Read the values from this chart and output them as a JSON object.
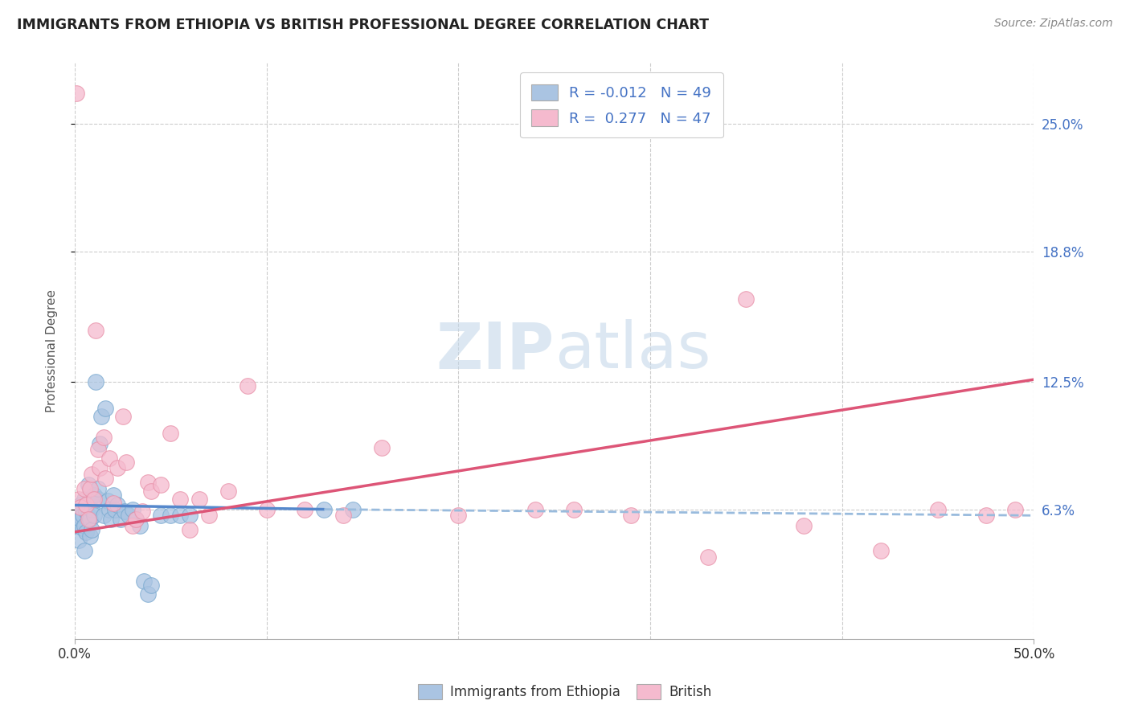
{
  "title": "IMMIGRANTS FROM ETHIOPIA VS BRITISH PROFESSIONAL DEGREE CORRELATION CHART",
  "source": "Source: ZipAtlas.com",
  "ylabel": "Professional Degree",
  "ylabel_right_labels": [
    "25.0%",
    "18.8%",
    "12.5%",
    "6.3%"
  ],
  "ylabel_right_values": [
    0.25,
    0.188,
    0.125,
    0.063
  ],
  "xlim": [
    0.0,
    0.5
  ],
  "ylim": [
    0.0,
    0.28
  ],
  "ethiopia_color": "#aac4e2",
  "british_color": "#f5bace",
  "ethiopia_edge": "#7aaad0",
  "british_edge": "#e890a8",
  "trendline_ethiopia_color": "#5588cc",
  "trendline_british_color": "#dd5577",
  "trendline_ethiopia_dashed_color": "#99bbdd",
  "grid_color": "#cccccc",
  "watermark_color": "#c5d8ea",
  "ethiopia_trendline_x": [
    0.0,
    0.13,
    0.5
  ],
  "ethiopia_trendline_y": [
    0.063,
    0.063,
    0.063
  ],
  "british_trendline_x": [
    0.0,
    0.5
  ],
  "british_trendline_y": [
    0.055,
    0.125
  ],
  "ethiopia_x": [
    0.001,
    0.002,
    0.002,
    0.003,
    0.003,
    0.004,
    0.004,
    0.005,
    0.005,
    0.005,
    0.006,
    0.006,
    0.007,
    0.007,
    0.008,
    0.008,
    0.008,
    0.009,
    0.009,
    0.01,
    0.01,
    0.011,
    0.012,
    0.012,
    0.013,
    0.014,
    0.015,
    0.016,
    0.017,
    0.018,
    0.019,
    0.02,
    0.021,
    0.022,
    0.024,
    0.026,
    0.028,
    0.03,
    0.032,
    0.034,
    0.036,
    0.038,
    0.04,
    0.045,
    0.05,
    0.055,
    0.06,
    0.13,
    0.145
  ],
  "ethiopia_y": [
    0.055,
    0.06,
    0.048,
    0.058,
    0.065,
    0.06,
    0.054,
    0.068,
    0.055,
    0.043,
    0.062,
    0.052,
    0.075,
    0.06,
    0.068,
    0.058,
    0.05,
    0.063,
    0.053,
    0.06,
    0.07,
    0.125,
    0.068,
    0.073,
    0.095,
    0.108,
    0.06,
    0.112,
    0.067,
    0.063,
    0.058,
    0.07,
    0.063,
    0.065,
    0.058,
    0.062,
    0.06,
    0.063,
    0.058,
    0.055,
    0.028,
    0.022,
    0.026,
    0.06,
    0.06,
    0.06,
    0.06,
    0.063,
    0.063
  ],
  "british_x": [
    0.001,
    0.002,
    0.003,
    0.005,
    0.006,
    0.007,
    0.008,
    0.009,
    0.01,
    0.011,
    0.012,
    0.013,
    0.015,
    0.016,
    0.018,
    0.02,
    0.022,
    0.025,
    0.027,
    0.03,
    0.032,
    0.035,
    0.038,
    0.04,
    0.045,
    0.05,
    0.055,
    0.06,
    0.065,
    0.07,
    0.08,
    0.09,
    0.1,
    0.12,
    0.14,
    0.16,
    0.2,
    0.24,
    0.29,
    0.33,
    0.38,
    0.42,
    0.45,
    0.475,
    0.49,
    0.35,
    0.26
  ],
  "british_y": [
    0.265,
    0.068,
    0.064,
    0.073,
    0.065,
    0.058,
    0.073,
    0.08,
    0.068,
    0.15,
    0.092,
    0.083,
    0.098,
    0.078,
    0.088,
    0.066,
    0.083,
    0.108,
    0.086,
    0.055,
    0.058,
    0.062,
    0.076,
    0.072,
    0.075,
    0.1,
    0.068,
    0.053,
    0.068,
    0.06,
    0.072,
    0.123,
    0.063,
    0.063,
    0.06,
    0.093,
    0.06,
    0.063,
    0.06,
    0.04,
    0.055,
    0.043,
    0.063,
    0.06,
    0.063,
    0.165,
    0.063
  ]
}
